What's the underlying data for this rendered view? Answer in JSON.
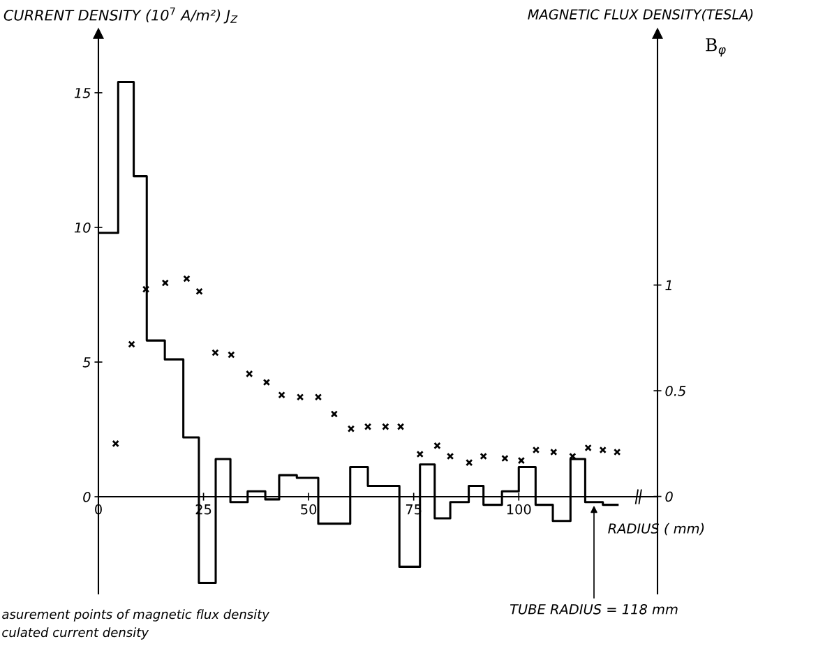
{
  "chart_data": {
    "type": "step",
    "ylabel": "CURRENT DENSITY (10$^{7}$ A/m²) J$_{Z}$",
    "y2label": "MAGNETIC FLUX DENSITY(TESLA)",
    "xlabel": "RADIUS ( mm)",
    "xlim": [
      0,
      133
    ],
    "xticks": [
      0,
      25,
      50,
      75,
      100
    ],
    "ylim": [
      -3.6,
      17.2
    ],
    "yticks": [
      0,
      5,
      10,
      15
    ],
    "y2lim": [
      -0.46,
      2.19
    ],
    "y2ticks": [
      0,
      0.5,
      1
    ],
    "grid": false,
    "series": [
      {
        "color": "#000000",
        "x": [
          0,
          4.7,
          8.4,
          11.5,
          15.8,
          20.2,
          23.9,
          27.9,
          31.4,
          35.5,
          39.7,
          43,
          47.2,
          52.3,
          59.9,
          64.1,
          71.6,
          76.5,
          80.0,
          83.7,
          88.1,
          91.6,
          96.0,
          100,
          104,
          108.1,
          112.3,
          115.8,
          120,
          123.5
        ],
        "values": [
          9.8,
          15.4,
          11.9,
          5.8,
          5.1,
          2.2,
          -3.2,
          1.4,
          -0.2,
          0.2,
          -0.1,
          0.8,
          0.7,
          -1.0,
          1.1,
          0.4,
          -2.6,
          1.2,
          -0.8,
          -0.2,
          0.4,
          -0.3,
          0.2,
          1.1,
          -0.3,
          -0.9,
          1.4,
          -0.2,
          -0.3,
          -0.3
        ]
      },
      {
        "type": "scatter",
        "axis": "y2",
        "color": "#000000",
        "marker": "cross",
        "x": [
          4.1,
          7.9,
          11.3,
          15.9,
          21.0,
          24.0,
          27.8,
          31.6,
          35.9,
          40.0,
          43.6,
          48.0,
          52.3,
          56.1,
          60.1,
          64.1,
          68.3,
          71.9,
          76.5,
          80.6,
          83.7,
          88.2,
          91.6,
          96.7,
          100.6,
          104.1,
          108.3,
          112.8,
          116.5,
          120.0,
          123.4
        ],
        "values": [
          0.25,
          0.72,
          0.98,
          1.01,
          1.03,
          0.97,
          0.68,
          0.67,
          0.58,
          0.54,
          0.48,
          0.47,
          0.47,
          0.39,
          0.32,
          0.33,
          0.33,
          0.33,
          0.2,
          0.24,
          0.19,
          0.16,
          0.19,
          0.18,
          0.17,
          0.22,
          0.21,
          0.19,
          0.23,
          0.22,
          0.21
        ]
      }
    ],
    "annotations": [
      "TUBE RADIUS = 118 mm",
      "B$_{φ}$",
      "asurement points of magnetic flux density",
      "culated current density"
    ]
  }
}
